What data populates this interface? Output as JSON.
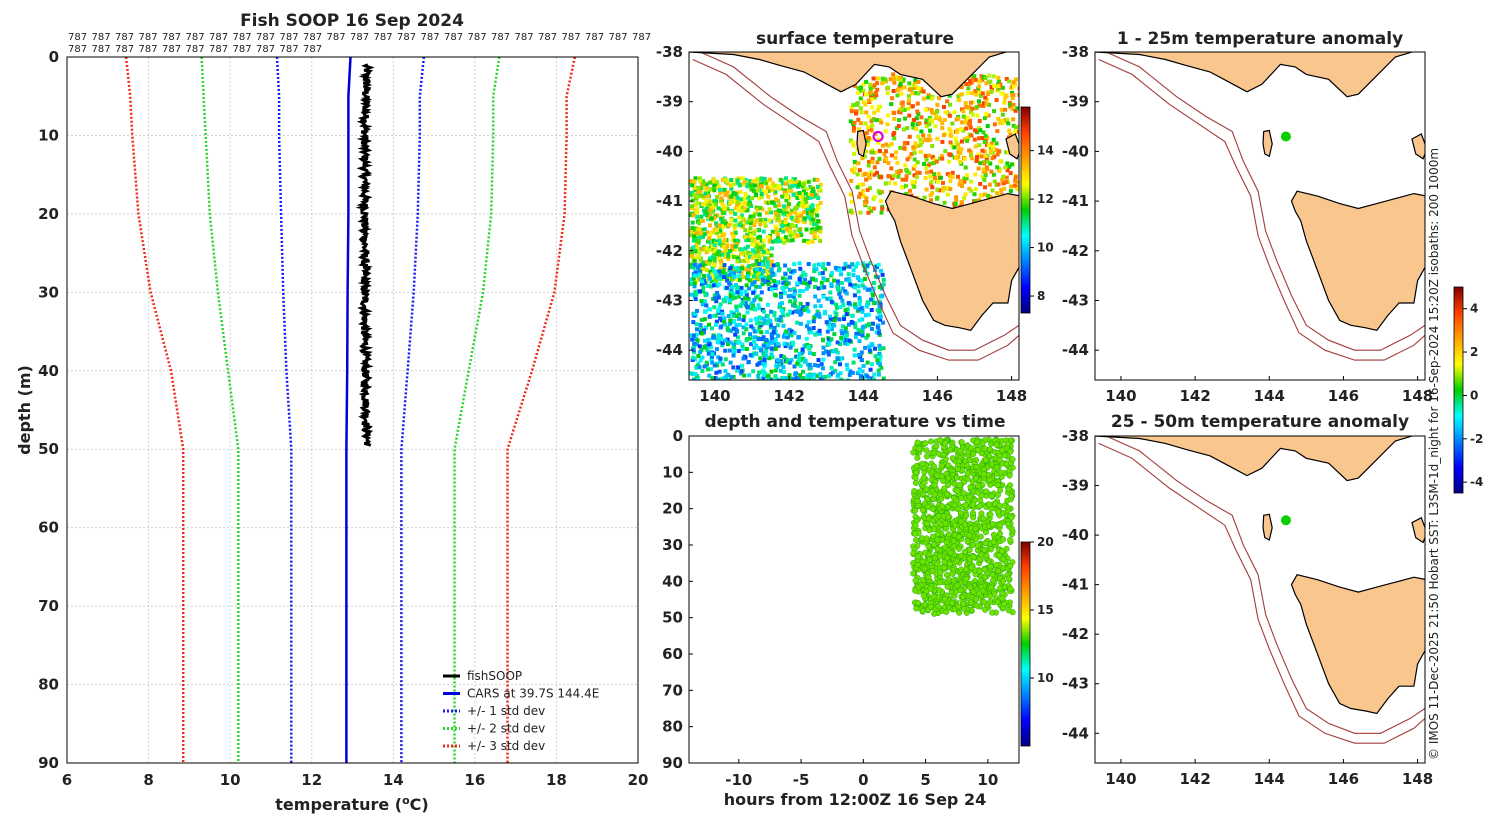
{
  "colors": {
    "fishsoop": "#000000",
    "cars": "#0000dd",
    "std1": "#1a1aee",
    "std2": "#2ad42a",
    "std3": "#ee2a1a",
    "land": "#f9c68e",
    "isobath": "#a23b3b",
    "marker_ring": "#dd00dd",
    "anomaly_dot": "#11cc11"
  },
  "profile": {
    "title": "Fish SOOP 16 Sep 2024",
    "counts_label": "787",
    "counts_row1": 25,
    "counts_row2": 11,
    "legend": [
      "fishSOOP",
      "CARS at 39.7S 144.4E",
      "+/- 1 std dev",
      "+/- 2 std dev",
      "+/- 3 std dev"
    ]
  },
  "surface_map": {
    "title": "surface temperature",
    "colorbar": {
      "min": 7.3,
      "max": 15.8,
      "ticks": [
        "8",
        "10",
        "12",
        "14"
      ]
    }
  },
  "depth_time": {
    "title": "depth and temperature vs time",
    "colorbar": {
      "min": 5,
      "max": 20,
      "ticks": [
        "10",
        "15",
        "20"
      ]
    }
  },
  "anomaly_map_1": {
    "title": "1 - 25m temperature anomaly"
  },
  "anomaly_map_2": {
    "title": "25 - 50m temperature anomaly"
  },
  "anomaly_colorbar": {
    "min": -4.5,
    "max": 5.0,
    "ticks": [
      "-4",
      "-2",
      "0",
      "2",
      "4"
    ]
  },
  "credit": "© IMOS 11-Dec-2025 21:50 Hobart SST: L3SM-1d_night for 16-Sep-2024 15:20Z isobaths: 200  1000m",
  "chart_data": [
    {
      "type": "line",
      "title": "Fish SOOP 16 Sep 2024",
      "xlabel": "temperature (°C)",
      "ylabel": "depth (m)",
      "xlim": [
        6,
        20
      ],
      "ylim": [
        90,
        0
      ],
      "xticks": [
        "6",
        "8",
        "10",
        "12",
        "14",
        "16",
        "18",
        "20"
      ],
      "yticks": [
        "0",
        "10",
        "20",
        "30",
        "40",
        "50",
        "60",
        "70",
        "80",
        "90"
      ],
      "grid": true,
      "legend_position": "bottom-right",
      "series": [
        {
          "name": "fishSOOP",
          "depth": [
            1,
            5,
            10,
            15,
            20,
            25,
            30,
            35,
            40,
            45,
            48,
            49.5
          ],
          "temp": [
            13.35,
            13.33,
            13.3,
            13.3,
            13.3,
            13.3,
            13.3,
            13.3,
            13.32,
            13.33,
            13.35,
            13.38
          ]
        },
        {
          "name": "CARS at 39.7S 144.4E",
          "depth": [
            0,
            5,
            10,
            20,
            30,
            40,
            50,
            60,
            70,
            80,
            90
          ],
          "temp": [
            12.95,
            12.9,
            12.9,
            12.9,
            12.88,
            12.87,
            12.85,
            12.85,
            12.85,
            12.85,
            12.85
          ]
        },
        {
          "name": "+/- 1 std dev",
          "depth": [
            0,
            5,
            10,
            20,
            30,
            40,
            50,
            60,
            70,
            80,
            90
          ],
          "low": [
            11.15,
            11.2,
            11.2,
            11.25,
            11.3,
            11.38,
            11.5,
            11.5,
            11.5,
            11.5,
            11.5
          ],
          "high": [
            14.75,
            14.65,
            14.65,
            14.6,
            14.5,
            14.35,
            14.2,
            14.2,
            14.2,
            14.2,
            14.2
          ]
        },
        {
          "name": "+/- 2 std dev",
          "depth": [
            0,
            5,
            10,
            20,
            30,
            40,
            50,
            60,
            70,
            80,
            90
          ],
          "low": [
            9.3,
            9.35,
            9.4,
            9.5,
            9.7,
            9.95,
            10.2,
            10.2,
            10.2,
            10.2,
            10.2
          ],
          "high": [
            16.6,
            16.45,
            16.45,
            16.4,
            16.2,
            15.85,
            15.5,
            15.5,
            15.5,
            15.5,
            15.5
          ]
        },
        {
          "name": "+/- 3 std dev",
          "depth": [
            0,
            5,
            10,
            20,
            30,
            40,
            50,
            60,
            70,
            80,
            90
          ],
          "low": [
            7.45,
            7.55,
            7.6,
            7.75,
            8.05,
            8.55,
            8.85,
            8.85,
            8.85,
            8.85,
            8.85
          ],
          "high": [
            18.45,
            18.25,
            18.25,
            18.2,
            17.95,
            17.4,
            16.8,
            16.8,
            16.8,
            16.8,
            16.8
          ]
        }
      ]
    },
    {
      "type": "heatmap",
      "title": "surface temperature",
      "xlim": [
        139.3,
        148.2
      ],
      "ylim": [
        -44.6,
        -38
      ],
      "xticks": [
        "140",
        "142",
        "144",
        "146",
        "148"
      ],
      "yticks": [
        "-38",
        "-39",
        "-40",
        "-41",
        "-42",
        "-43",
        "-44"
      ],
      "marker": {
        "lon": 144.4,
        "lat": -39.7
      },
      "patches": [
        {
          "lon": [
            143.6,
            148.2
          ],
          "lat": [
            -41.2,
            -38.4
          ],
          "temp": [
            11.5,
            14.8
          ]
        },
        {
          "lon": [
            139.3,
            142.8
          ],
          "lat": [
            -42.6,
            -40.5
          ],
          "temp": [
            10.8,
            13.6
          ]
        },
        {
          "lon": [
            139.3,
            144.5
          ],
          "lat": [
            -44.6,
            -42.2
          ],
          "temp": [
            8.8,
            11.6
          ]
        }
      ]
    },
    {
      "type": "scatter",
      "title": "depth and temperature vs time",
      "xlabel": "hours from 12:00Z 16 Sep 24",
      "ylabel": "",
      "xlim": [
        -14,
        12.5
      ],
      "ylim": [
        90,
        0
      ],
      "xticks": [
        "-10",
        "-5",
        "0",
        "5",
        "10"
      ],
      "yticks": [
        "0",
        "10",
        "20",
        "30",
        "40",
        "50",
        "60",
        "70",
        "80",
        "90"
      ],
      "points": {
        "hours": [
          4,
          12
        ],
        "depth": [
          1,
          49
        ],
        "temp": 13.3
      }
    },
    {
      "type": "scatter",
      "title": "1 - 25m temperature anomaly",
      "xlim": [
        139.3,
        148.2
      ],
      "ylim": [
        -44.6,
        -38
      ],
      "xticks": [
        "140",
        "142",
        "144",
        "146",
        "148"
      ],
      "yticks": [
        "-38",
        "-39",
        "-40",
        "-41",
        "-42",
        "-43",
        "-44"
      ],
      "points": [
        {
          "lon": 144.45,
          "lat": -39.7,
          "anomaly": 0.3
        }
      ]
    },
    {
      "type": "scatter",
      "title": "25 - 50m temperature anomaly",
      "xlim": [
        139.3,
        148.2
      ],
      "ylim": [
        -44.6,
        -38
      ],
      "xticks": [
        "140",
        "142",
        "144",
        "146",
        "148"
      ],
      "yticks": [
        "-38",
        "-39",
        "-40",
        "-41",
        "-42",
        "-43",
        "-44"
      ],
      "points": [
        {
          "lon": 144.45,
          "lat": -39.7,
          "anomaly": 0.3
        }
      ]
    }
  ]
}
